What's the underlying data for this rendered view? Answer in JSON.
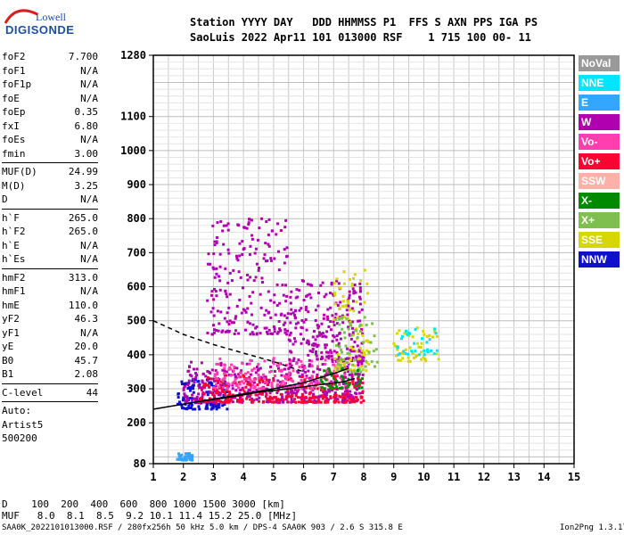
{
  "logo": {
    "line1": "Lowell",
    "line2": "DIGISONDE"
  },
  "header": {
    "line1": "Station YYYY DAY   DDD HHMMSS P1  FFS S AXN PPS IGA PS",
    "line2": "SaoLuis 2022 Apr11 101 013000 RSF    1 715 100 00- 11"
  },
  "params": {
    "group1": [
      [
        "foF2",
        "7.700"
      ],
      [
        "foF1",
        "N/A"
      ],
      [
        "foF1p",
        "N/A"
      ],
      [
        "foE",
        "N/A"
      ],
      [
        "foEp",
        "0.35"
      ],
      [
        "fxI",
        "6.80"
      ],
      [
        "foEs",
        "N/A"
      ],
      [
        "fmin",
        "3.00"
      ]
    ],
    "group2": [
      [
        "MUF(D)",
        "24.99"
      ],
      [
        "M(D)",
        "3.25"
      ],
      [
        "D",
        "N/A"
      ]
    ],
    "group3": [
      [
        "h`F",
        "265.0"
      ],
      [
        "h`F2",
        "265.0"
      ],
      [
        "h`E",
        "N/A"
      ],
      [
        "h`Es",
        "N/A"
      ]
    ],
    "group4": [
      [
        "hmF2",
        "313.0"
      ],
      [
        "hmF1",
        "N/A"
      ],
      [
        "hmE",
        "110.0"
      ],
      [
        "yF2",
        "46.3"
      ],
      [
        "yF1",
        "N/A"
      ],
      [
        "yE",
        "20.0"
      ],
      [
        "B0",
        "45.7"
      ],
      [
        "B1",
        "2.08"
      ]
    ],
    "group5": [
      [
        "C-level",
        "44"
      ]
    ]
  },
  "auto": {
    "line1": "Auto:",
    "line2": "Artist5",
    "line3": "500200"
  },
  "legend": [
    {
      "label": "NoVal",
      "color": "#999999"
    },
    {
      "label": "NNE",
      "color": "#00e5ff"
    },
    {
      "label": "E",
      "color": "#33a6ff"
    },
    {
      "label": "W",
      "color": "#b000b0"
    },
    {
      "label": "Vo-",
      "color": "#ff3fb0"
    },
    {
      "label": "Vo+",
      "color": "#ff0033"
    },
    {
      "label": "SSW",
      "color": "#ffb0a8"
    },
    {
      "label": "X-",
      "color": "#008a00"
    },
    {
      "label": "X+",
      "color": "#7fbf4f"
    },
    {
      "label": "SSE",
      "color": "#d6d600"
    },
    {
      "label": "NNW",
      "color": "#1010cc"
    }
  ],
  "footer": {
    "line1": "D    100  200  400  600  800 1000 1500 3000 [km]",
    "line2": "MUF   8.0  8.1  8.5  9.2 10.1 11.4 15.2 25.0 [MHz]"
  },
  "status": {
    "left": "SAA0K_2022101013000.RSF / 280fx256h 50 kHz 5.0 km / DPS-4 SAA0K 903 / 2.6 S 315.8 E",
    "right": "Ion2Png 1.3.17"
  },
  "chart_data": {
    "type": "scatter",
    "title": "",
    "xlabel": "",
    "ylabel": "",
    "xlim": [
      1,
      15
    ],
    "ylim": [
      80,
      1280
    ],
    "x_ticks": [
      1,
      2,
      3,
      4,
      5,
      6,
      7,
      8,
      9,
      10,
      11,
      12,
      13,
      14,
      15
    ],
    "y_ticks": [
      80,
      200,
      300,
      400,
      500,
      600,
      700,
      800,
      900,
      1000,
      1100,
      1280
    ],
    "grid": true,
    "traces": [
      {
        "name": "o-trace",
        "style": "solid",
        "x": [
          1.0,
          2.0,
          3.0,
          4.0,
          5.0,
          6.0,
          7.0,
          7.5
        ],
        "y": [
          240,
          255,
          270,
          285,
          300,
          318,
          345,
          360
        ]
      },
      {
        "name": "x-trace",
        "style": "solid",
        "x": [
          2.5,
          3.5,
          4.5,
          5.5,
          6.5,
          7.3,
          7.7
        ],
        "y": [
          262,
          275,
          290,
          300,
          312,
          320,
          330
        ]
      },
      {
        "name": "profile",
        "style": "dashed",
        "x": [
          1.0,
          2.0,
          3.0,
          4.0,
          5.0,
          6.0
        ],
        "y": [
          500,
          460,
          430,
          405,
          380,
          350
        ]
      }
    ],
    "clusters": [
      {
        "color": "#1010cc",
        "x": [
          1.8,
          3.5
        ],
        "y": [
          240,
          330
        ],
        "n": 140
      },
      {
        "color": "#b000b0",
        "x": [
          2.0,
          8.0
        ],
        "y": [
          260,
          380
        ],
        "n": 420
      },
      {
        "color": "#ff0033",
        "x": [
          2.5,
          8.0
        ],
        "y": [
          260,
          340
        ],
        "n": 260
      },
      {
        "color": "#ff3fb0",
        "x": [
          3.0,
          7.5
        ],
        "y": [
          300,
          390
        ],
        "n": 180
      },
      {
        "color": "#b000b0",
        "x": [
          2.8,
          5.5
        ],
        "y": [
          460,
          800
        ],
        "n": 220
      },
      {
        "color": "#b000b0",
        "x": [
          5.5,
          8.0
        ],
        "y": [
          380,
          620
        ],
        "n": 240
      },
      {
        "color": "#d6d600",
        "x": [
          7.0,
          8.2
        ],
        "y": [
          350,
          650
        ],
        "n": 90
      },
      {
        "color": "#7fbf4f",
        "x": [
          7.0,
          8.5
        ],
        "y": [
          350,
          520
        ],
        "n": 60
      },
      {
        "color": "#d6d600",
        "x": [
          9.0,
          10.5
        ],
        "y": [
          380,
          480
        ],
        "n": 50
      },
      {
        "color": "#00e5ff",
        "x": [
          9.0,
          10.5
        ],
        "y": [
          400,
          480
        ],
        "n": 30
      },
      {
        "color": "#33a6ff",
        "x": [
          1.8,
          2.3
        ],
        "y": [
          90,
          110
        ],
        "n": 40
      },
      {
        "color": "#008a00",
        "x": [
          6.5,
          8.0
        ],
        "y": [
          300,
          360
        ],
        "n": 40
      }
    ]
  }
}
